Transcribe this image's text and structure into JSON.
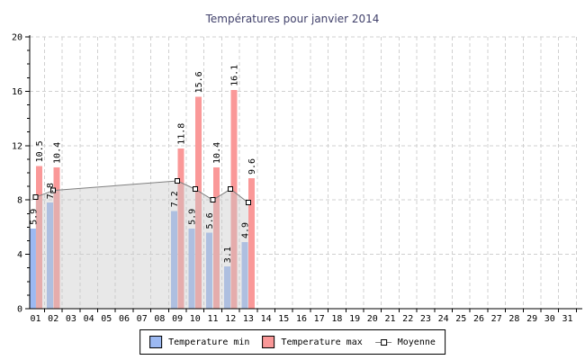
{
  "title": {
    "text": "Températures pour janvier 2014",
    "color": "#41416B"
  },
  "legend": {
    "items": [
      {
        "label": "Temperature min",
        "kind": "swatch"
      },
      {
        "label": "Temperature max",
        "kind": "swatch"
      },
      {
        "label": "Moyenne",
        "kind": "line-marker"
      }
    ]
  },
  "chart_data": {
    "type": "bar",
    "title": "Températures pour janvier 2014",
    "categories": [
      "01",
      "02",
      "03",
      "04",
      "05",
      "06",
      "07",
      "08",
      "09",
      "10",
      "11",
      "12",
      "13",
      "14",
      "15",
      "16",
      "17",
      "18",
      "19",
      "20",
      "21",
      "22",
      "23",
      "24",
      "25",
      "26",
      "27",
      "28",
      "29",
      "30",
      "31"
    ],
    "xlabel": "",
    "ylabel": "",
    "ylim": [
      0,
      20
    ],
    "yticks": [
      0,
      4,
      8,
      12,
      16,
      20
    ],
    "minor_tick_step": 1,
    "grid": true,
    "legend_position": "bottom",
    "bar_value_labels": true,
    "colors": {
      "grid": "#D0D0D0",
      "axis": "#000000",
      "text": "#000000",
      "area_fill": "rgba(200,200,200,0.42)"
    },
    "series": [
      {
        "name": "Temperature min",
        "type": "bar",
        "color": "#9CB9F2",
        "values": [
          5.9,
          7.8,
          null,
          null,
          null,
          null,
          null,
          null,
          7.2,
          5.9,
          5.6,
          3.1,
          4.9,
          null,
          null,
          null,
          null,
          null,
          null,
          null,
          null,
          null,
          null,
          null,
          null,
          null,
          null,
          null,
          null,
          null,
          null
        ]
      },
      {
        "name": "Temperature max",
        "type": "bar",
        "color": "#FA9898",
        "values": [
          10.5,
          10.4,
          null,
          null,
          null,
          null,
          null,
          null,
          11.8,
          15.6,
          10.4,
          16.1,
          9.6,
          null,
          null,
          null,
          null,
          null,
          null,
          null,
          null,
          null,
          null,
          null,
          null,
          null,
          null,
          null,
          null,
          null,
          null
        ]
      },
      {
        "name": "Moyenne",
        "type": "line",
        "color": "#808080",
        "marker": "square",
        "marker_fill": "#ffffff",
        "area": true,
        "values": [
          8.2,
          8.7,
          null,
          null,
          null,
          null,
          null,
          null,
          9.4,
          8.8,
          8.0,
          8.8,
          7.8,
          null,
          null,
          null,
          null,
          null,
          null,
          null,
          null,
          null,
          null,
          null,
          null,
          null,
          null,
          null,
          null,
          null,
          null
        ]
      }
    ]
  }
}
